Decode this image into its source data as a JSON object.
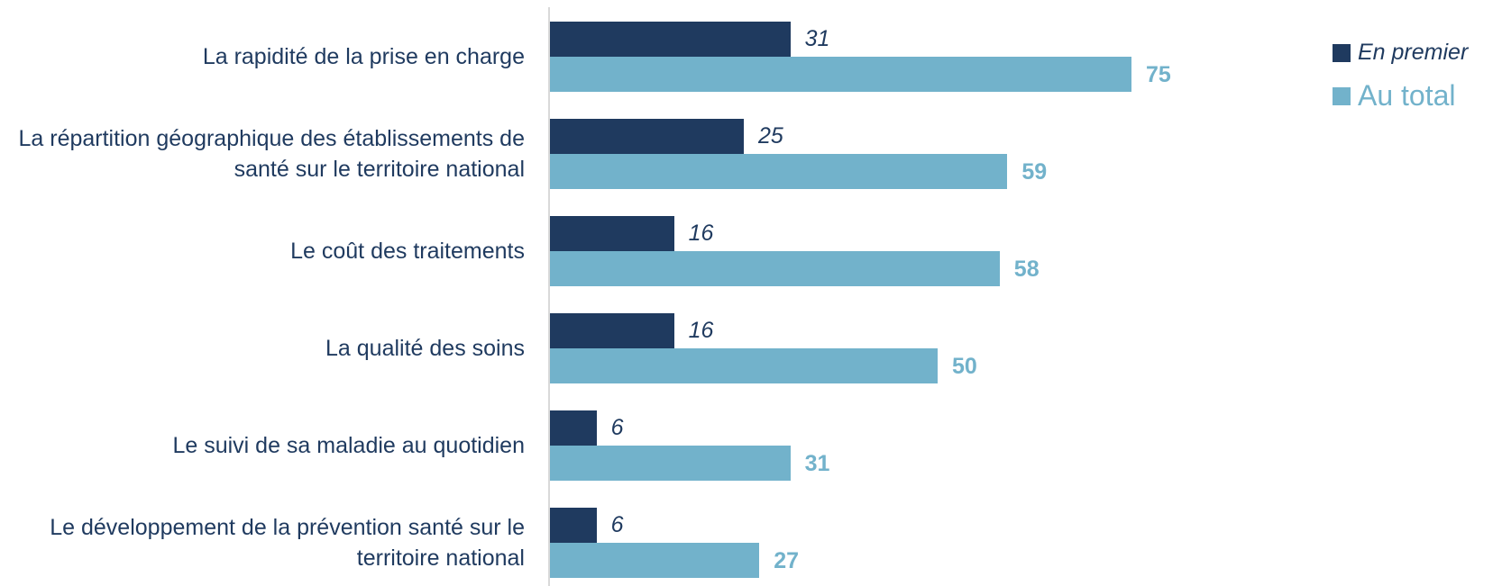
{
  "chart_data": {
    "type": "bar",
    "orientation": "horizontal",
    "categories": [
      "La rapidité de la prise en charge",
      "La répartition géographique des établissements de santé sur le territoire national",
      "Le coût des traitements",
      "La qualité des soins",
      "Le suivi de sa maladie au quotidien",
      "Le développement de la prévention santé sur le territoire national"
    ],
    "series": [
      {
        "name": "En premier",
        "color": "#1f3a5f",
        "values": [
          31,
          25,
          16,
          16,
          6,
          6
        ]
      },
      {
        "name": "Au total",
        "color": "#72b2cb",
        "values": [
          75,
          59,
          58,
          50,
          31,
          27
        ]
      }
    ],
    "legend": "top-right"
  }
}
